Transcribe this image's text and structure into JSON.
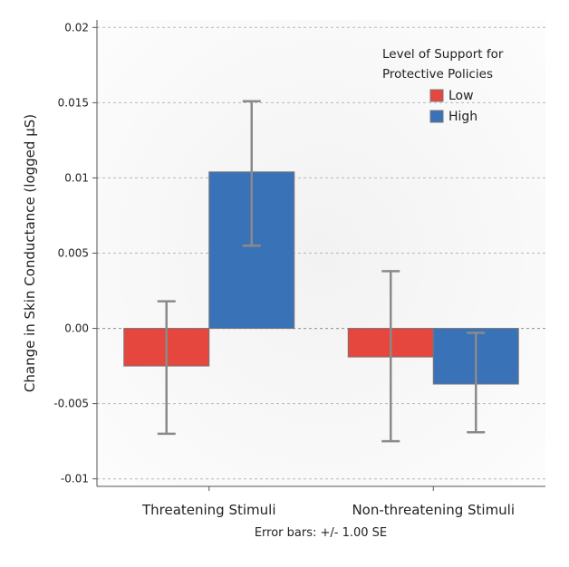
{
  "chart_data": {
    "type": "bar",
    "categories": [
      "Threatening Stimuli",
      "Non-threatening Stimuli"
    ],
    "series": [
      {
        "name": "Low",
        "color": "#e5463e",
        "values": [
          -0.0025,
          -0.0019
        ],
        "error_low": [
          -0.007,
          -0.0075
        ],
        "error_high": [
          0.0018,
          0.0038
        ]
      },
      {
        "name": "High",
        "color": "#3a72b8",
        "values": [
          0.0104,
          -0.0037
        ],
        "error_low": [
          0.0055,
          -0.0069
        ],
        "error_high": [
          0.0151,
          -0.0003
        ]
      }
    ],
    "ylabel": "Change in Skin Conductance (logged µS)",
    "xlabel": "",
    "ylim": [
      -0.0105,
      0.0205
    ],
    "yticks": [
      -0.01,
      -0.005,
      0.0,
      0.005,
      0.01,
      0.015,
      0.02
    ],
    "ytick_labels": [
      "-0.01",
      "-0.005",
      "0.00",
      "0.005",
      "0.01",
      "0.015",
      "0.02"
    ],
    "grid": true,
    "legend": {
      "title_line1": "Level of Support for",
      "title_line2": "Protective Policies",
      "placement": "top-right"
    },
    "note": "Error bars: +/- 1.00 SE"
  }
}
